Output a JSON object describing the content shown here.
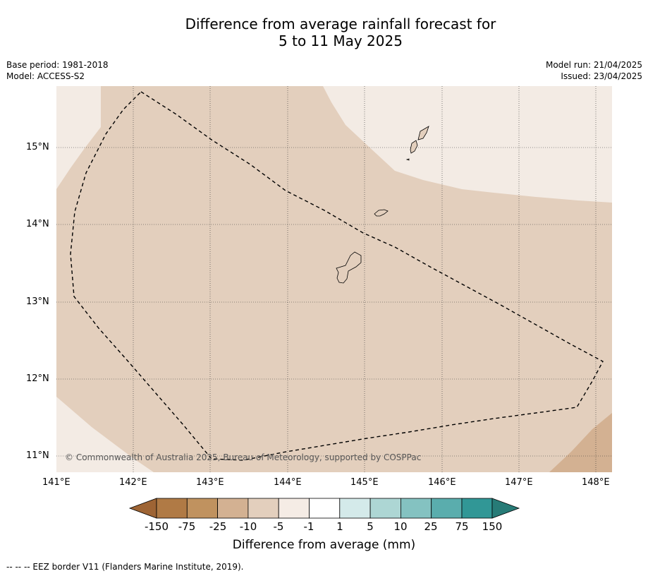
{
  "title": {
    "line1": "Difference from average rainfall forecast for",
    "line2": "5 to 11 May 2025"
  },
  "meta_left": {
    "base_period": "Base period: 1981-2018",
    "model": "Model: ACCESS-S2"
  },
  "meta_right": {
    "model_run": "Model run: 21/04/2025",
    "issued": "Issued: 23/04/2025"
  },
  "copyright": "© Commonwealth of Australia 2025, Bureau of Meteorology, supported by COSPPac",
  "map": {
    "lon_labels": [
      "141°E",
      "142°E",
      "143°E",
      "144°E",
      "145°E",
      "146°E",
      "147°E",
      "148°E"
    ],
    "lat_labels": [
      "15°N",
      "14°N",
      "13°N",
      "12°N",
      "11°N"
    ],
    "lon_range": [
      141,
      148.2
    ],
    "lat_range": [
      10.8,
      15.8
    ]
  },
  "colorbar": {
    "ticks": [
      "-150",
      "-75",
      "-25",
      "-10",
      "-5",
      "-1",
      "1",
      "5",
      "10",
      "25",
      "75",
      "150"
    ],
    "colors": [
      "#9e6434",
      "#b07a45",
      "#c0925f",
      "#d3b192",
      "#e3cfbd",
      "#f5ece5",
      "#ffffff",
      "#d4eaea",
      "#add6d4",
      "#84c2c1",
      "#5aadad",
      "#319796",
      "#277b77"
    ],
    "label": "Difference from average (mm)"
  },
  "footnote": "--  --  -- EEZ border V11 (Flanders Marine Institute, 2019)."
}
